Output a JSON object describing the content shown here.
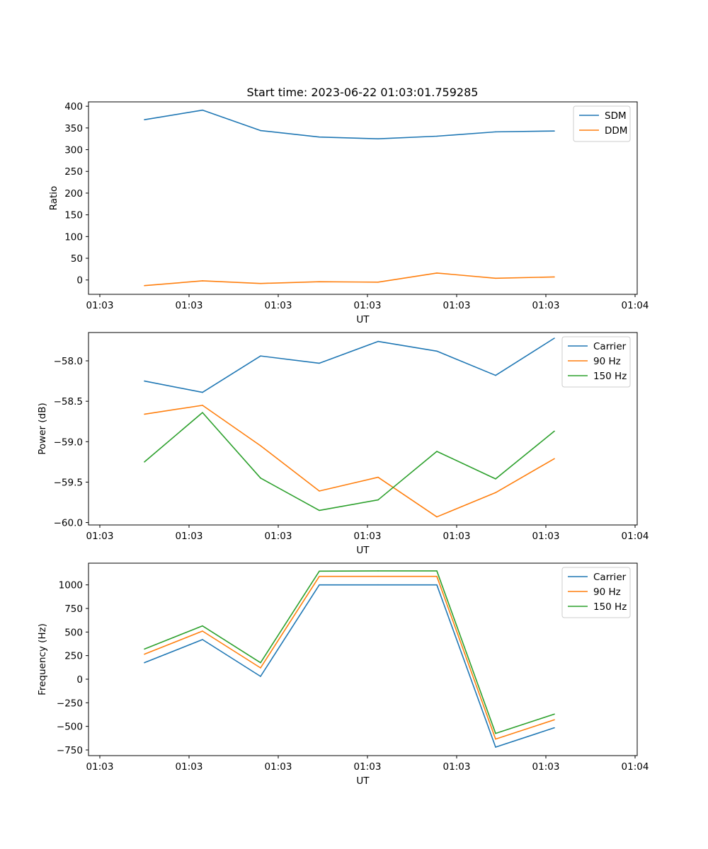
{
  "figure": {
    "title": "Start time: 2023-06-22 01:03:01.759285"
  },
  "colors": {
    "blue": "#1f77b4",
    "orange": "#ff7f0e",
    "green": "#2ca02c"
  },
  "chart_data": [
    {
      "type": "line",
      "title": "",
      "xlabel": "UT",
      "ylabel": "Ratio",
      "x_tick_labels": [
        "01:03",
        "01:03",
        "01:03",
        "01:03",
        "01:03",
        "01:03",
        "01:04"
      ],
      "y_ticks": [
        0,
        50,
        100,
        150,
        200,
        250,
        300,
        350,
        400
      ],
      "ylim": [
        -33,
        410
      ],
      "legend_position": "top-right",
      "series": [
        {
          "name": "SDM",
          "color": "#1f77b4",
          "values": [
            369,
            391,
            344,
            329,
            325,
            331,
            341,
            343
          ]
        },
        {
          "name": "DDM",
          "color": "#ff7f0e",
          "values": [
            -13,
            -2,
            -8,
            -4,
            -5,
            16,
            4,
            7
          ]
        }
      ]
    },
    {
      "type": "line",
      "title": "",
      "xlabel": "UT",
      "ylabel": "Power (dB)",
      "x_tick_labels": [
        "01:03",
        "01:03",
        "01:03",
        "01:03",
        "01:03",
        "01:03",
        "01:04"
      ],
      "y_ticks": [
        -60.0,
        -59.5,
        -59.0,
        -58.5,
        -58.0
      ],
      "y_tick_labels": [
        "−60.0",
        "−59.5",
        "−59.0",
        "−58.5",
        "−58.0"
      ],
      "ylim": [
        -60.03,
        -57.65
      ],
      "legend_position": "top-right",
      "series": [
        {
          "name": "Carrier",
          "color": "#1f77b4",
          "values": [
            -58.25,
            -58.39,
            -57.94,
            -58.03,
            -57.76,
            -57.88,
            -58.18,
            -57.72
          ]
        },
        {
          "name": "90 Hz",
          "color": "#ff7f0e",
          "values": [
            -58.66,
            -58.55,
            -59.05,
            -59.61,
            -59.44,
            -59.93,
            -59.63,
            -59.21
          ]
        },
        {
          "name": "150 Hz",
          "color": "#2ca02c",
          "values": [
            -59.25,
            -58.64,
            -59.45,
            -59.85,
            -59.72,
            -59.12,
            -59.46,
            -58.87
          ]
        }
      ]
    },
    {
      "type": "line",
      "title": "",
      "xlabel": "UT",
      "ylabel": "Frequency (Hz)",
      "x_tick_labels": [
        "01:03",
        "01:03",
        "01:03",
        "01:03",
        "01:03",
        "01:03",
        "01:04"
      ],
      "y_ticks": [
        -750,
        -500,
        -250,
        0,
        250,
        500,
        750,
        1000
      ],
      "y_tick_labels": [
        "−750",
        "−500",
        "−250",
        "0",
        "250",
        "500",
        "750",
        "1000"
      ],
      "ylim": [
        -810,
        1230
      ],
      "legend_position": "top-right",
      "series": [
        {
          "name": "Carrier",
          "color": "#1f77b4",
          "values": [
            175,
            420,
            30,
            1000,
            1000,
            1000,
            -720,
            -515
          ]
        },
        {
          "name": "90 Hz",
          "color": "#ff7f0e",
          "values": [
            265,
            510,
            120,
            1090,
            1090,
            1090,
            -635,
            -430
          ]
        },
        {
          "name": "150 Hz",
          "color": "#2ca02c",
          "values": [
            320,
            565,
            175,
            1145,
            1148,
            1148,
            -575,
            -370
          ]
        }
      ]
    }
  ]
}
